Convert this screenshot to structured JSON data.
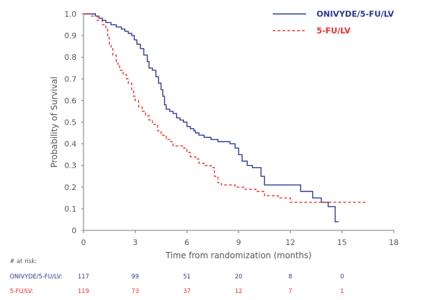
{
  "chart_data": {
    "type": "line",
    "xlabel": "Time from randomization (months)",
    "ylabel": "Probability of Survival",
    "xlim": [
      0,
      18
    ],
    "ylim": [
      0,
      1.0
    ],
    "x_ticks": [
      0,
      3,
      6,
      9,
      12,
      15,
      18
    ],
    "x_tick_labels": [
      "0",
      "3",
      "6",
      "9",
      "12",
      "15",
      "18"
    ],
    "y_ticks": [
      0,
      0.1,
      0.2,
      0.3,
      0.4,
      0.5,
      0.6,
      0.7,
      0.8,
      0.9,
      1.0
    ],
    "y_tick_labels": [
      "0",
      "0.1",
      "0.2",
      "0.3",
      "0.4",
      "0.5",
      "0.6",
      "0.7",
      "0.8",
      "0.9",
      "1.0"
    ],
    "grid": false,
    "legend_position": "top-right",
    "series": [
      {
        "name": "ONIVYDE/5-FU/LV",
        "color": "#2b3990",
        "style": "solid",
        "points": [
          [
            0,
            1.0
          ],
          [
            0.5,
            1.0
          ],
          [
            0.7,
            0.99
          ],
          [
            0.9,
            0.98
          ],
          [
            1.1,
            0.97
          ],
          [
            1.3,
            0.96
          ],
          [
            1.6,
            0.95
          ],
          [
            1.9,
            0.94
          ],
          [
            2.2,
            0.93
          ],
          [
            2.4,
            0.92
          ],
          [
            2.6,
            0.91
          ],
          [
            2.8,
            0.9
          ],
          [
            2.95,
            0.88
          ],
          [
            3.1,
            0.86
          ],
          [
            3.3,
            0.84
          ],
          [
            3.5,
            0.81
          ],
          [
            3.7,
            0.78
          ],
          [
            3.8,
            0.75
          ],
          [
            4.0,
            0.74
          ],
          [
            4.2,
            0.71
          ],
          [
            4.35,
            0.68
          ],
          [
            4.5,
            0.65
          ],
          [
            4.6,
            0.62
          ],
          [
            4.7,
            0.58
          ],
          [
            4.8,
            0.56
          ],
          [
            5.0,
            0.55
          ],
          [
            5.2,
            0.54
          ],
          [
            5.4,
            0.52
          ],
          [
            5.6,
            0.51
          ],
          [
            5.8,
            0.5
          ],
          [
            6.0,
            0.48
          ],
          [
            6.2,
            0.47
          ],
          [
            6.4,
            0.46
          ],
          [
            6.5,
            0.45
          ],
          [
            6.7,
            0.44
          ],
          [
            7.0,
            0.43
          ],
          [
            7.4,
            0.42
          ],
          [
            7.8,
            0.41
          ],
          [
            8.5,
            0.4
          ],
          [
            8.8,
            0.38
          ],
          [
            9.0,
            0.35
          ],
          [
            9.2,
            0.32
          ],
          [
            9.5,
            0.3
          ],
          [
            9.8,
            0.29
          ],
          [
            10.3,
            0.25
          ],
          [
            10.5,
            0.21
          ],
          [
            11.5,
            0.21
          ],
          [
            12.6,
            0.21
          ],
          [
            12.6,
            0.18
          ],
          [
            13.3,
            0.18
          ],
          [
            13.3,
            0.15
          ],
          [
            13.8,
            0.15
          ],
          [
            13.8,
            0.13
          ],
          [
            14.2,
            0.13
          ],
          [
            14.2,
            0.11
          ],
          [
            14.6,
            0.11
          ],
          [
            14.6,
            0.04
          ],
          [
            14.8,
            0.04
          ]
        ]
      },
      {
        "name": "5-FU/LV",
        "color": "#e8312f",
        "style": "dashed",
        "points": [
          [
            0,
            1.0
          ],
          [
            0.4,
            0.99
          ],
          [
            0.8,
            0.97
          ],
          [
            1.1,
            0.95
          ],
          [
            1.3,
            0.93
          ],
          [
            1.4,
            0.9
          ],
          [
            1.5,
            0.86
          ],
          [
            1.6,
            0.84
          ],
          [
            1.7,
            0.81
          ],
          [
            1.9,
            0.78
          ],
          [
            2.0,
            0.76
          ],
          [
            2.1,
            0.74
          ],
          [
            2.3,
            0.72
          ],
          [
            2.5,
            0.7
          ],
          [
            2.6,
            0.68
          ],
          [
            2.8,
            0.65
          ],
          [
            2.9,
            0.62
          ],
          [
            3.0,
            0.6
          ],
          [
            3.2,
            0.57
          ],
          [
            3.4,
            0.55
          ],
          [
            3.6,
            0.53
          ],
          [
            3.8,
            0.51
          ],
          [
            4.0,
            0.49
          ],
          [
            4.3,
            0.46
          ],
          [
            4.5,
            0.44
          ],
          [
            4.8,
            0.42
          ],
          [
            5.0,
            0.41
          ],
          [
            5.2,
            0.39
          ],
          [
            5.8,
            0.38
          ],
          [
            6.0,
            0.36
          ],
          [
            6.2,
            0.34
          ],
          [
            6.5,
            0.33
          ],
          [
            6.7,
            0.31
          ],
          [
            7.0,
            0.3
          ],
          [
            7.4,
            0.29
          ],
          [
            7.6,
            0.25
          ],
          [
            7.8,
            0.22
          ],
          [
            8.0,
            0.21
          ],
          [
            8.6,
            0.21
          ],
          [
            8.8,
            0.2
          ],
          [
            9.3,
            0.19
          ],
          [
            10.0,
            0.18
          ],
          [
            10.5,
            0.16
          ],
          [
            11.3,
            0.15
          ],
          [
            12.0,
            0.13
          ],
          [
            16.4,
            0.13
          ]
        ]
      }
    ],
    "at_risk": {
      "heading": "# at risk:",
      "columns": [
        0,
        3,
        6,
        9,
        12,
        15
      ],
      "rows": [
        {
          "label": "ONIVYDE/5-FU/LV:",
          "color": "#2b3990",
          "values": [
            "117",
            "99",
            "51",
            "20",
            "8",
            "0"
          ]
        },
        {
          "label": "5-FU/LV:",
          "color": "#e8312f",
          "values": [
            "119",
            "73",
            "37",
            "12",
            "7",
            "1"
          ]
        }
      ]
    }
  }
}
